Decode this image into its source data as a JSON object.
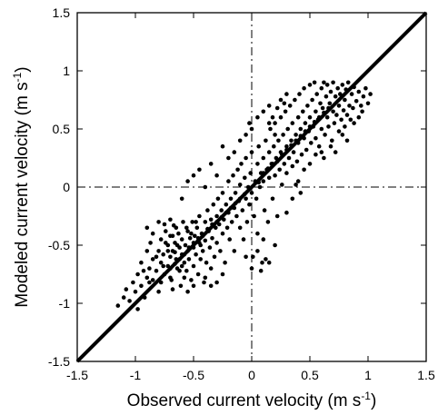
{
  "chart_data": {
    "type": "scatter",
    "title": "",
    "xlabel": "Observed current velocity (m s",
    "xlabel_sup": "-1",
    "xlabel_close": ")",
    "ylabel": "Modeled current velocity (m s",
    "ylabel_sup": "-1",
    "ylabel_close": ")",
    "xlim": [
      -1.5,
      1.5
    ],
    "ylim": [
      -1.5,
      1.5
    ],
    "xticks": [
      -1.5,
      -1,
      -0.5,
      0,
      0.5,
      1,
      1.5
    ],
    "yticks": [
      -1.5,
      -1,
      -0.5,
      0,
      0.5,
      1,
      1.5
    ],
    "xtick_labels": [
      "-1.5",
      "-1",
      "-0.5",
      "0",
      "0.5",
      "1",
      "1.5"
    ],
    "ytick_labels": [
      "-1.5",
      "-1",
      "-0.5",
      "0",
      "0.5",
      "1",
      "1.5"
    ],
    "grid": false,
    "reference_lines": [
      {
        "kind": "one-to-one",
        "style": "solid-thick",
        "from": [
          -1.5,
          -1.5
        ],
        "to": [
          1.5,
          1.5
        ]
      },
      {
        "kind": "vertical",
        "style": "dash-dot",
        "x": 0
      },
      {
        "kind": "horizontal",
        "style": "dash-dot",
        "y": 0
      }
    ],
    "marker_color": "#000000",
    "points": [
      [
        -1.15,
        -1.02
      ],
      [
        -1.1,
        -0.95
      ],
      [
        -1.05,
        -0.98
      ],
      [
        -1.0,
        -0.9
      ],
      [
        -0.98,
        -1.05
      ],
      [
        -1.08,
        -0.88
      ],
      [
        -0.95,
        -0.85
      ],
      [
        -0.92,
        -0.95
      ],
      [
        -0.9,
        -0.78
      ],
      [
        -0.88,
        -0.7
      ],
      [
        -0.85,
        -0.62
      ],
      [
        -0.85,
        -0.8
      ],
      [
        -0.82,
        -0.72
      ],
      [
        -0.8,
        -0.55
      ],
      [
        -0.8,
        -0.9
      ],
      [
        -0.78,
        -0.65
      ],
      [
        -0.78,
        -0.45
      ],
      [
        -0.76,
        -0.58
      ],
      [
        -0.75,
        -0.75
      ],
      [
        -0.74,
        -0.38
      ],
      [
        -0.72,
        -0.5
      ],
      [
        -0.72,
        -0.68
      ],
      [
        -0.7,
        -0.6
      ],
      [
        -0.7,
        -0.42
      ],
      [
        -0.69,
        -0.8
      ],
      [
        -0.68,
        -0.55
      ],
      [
        -0.67,
        -0.33
      ],
      [
        -0.66,
        -0.48
      ],
      [
        -0.65,
        -0.62
      ],
      [
        -0.64,
        -0.7
      ],
      [
        -0.63,
        -0.4
      ],
      [
        -0.62,
        -0.52
      ],
      [
        -0.61,
        -0.85
      ],
      [
        -0.6,
        -0.58
      ],
      [
        -0.6,
        -0.45
      ],
      [
        -0.59,
        -0.3
      ],
      [
        -0.58,
        -0.65
      ],
      [
        -0.57,
        -0.5
      ],
      [
        -0.56,
        -0.72
      ],
      [
        -0.55,
        -0.38
      ],
      [
        -0.55,
        -0.55
      ],
      [
        -0.54,
        -0.62
      ],
      [
        -0.53,
        -0.44
      ],
      [
        -0.52,
        -0.8
      ],
      [
        -0.51,
        -0.3
      ],
      [
        -0.5,
        -0.52
      ],
      [
        -0.5,
        -0.68
      ],
      [
        -0.49,
        -0.42
      ],
      [
        -0.48,
        -0.58
      ],
      [
        -0.47,
        -0.35
      ],
      [
        -0.46,
        -0.75
      ],
      [
        -0.45,
        -0.48
      ],
      [
        -0.45,
        -0.25
      ],
      [
        -0.44,
        -0.62
      ],
      [
        -0.43,
        -0.4
      ],
      [
        -0.42,
        -0.55
      ],
      [
        -0.41,
        -0.82
      ],
      [
        -0.4,
        -0.3
      ],
      [
        -0.4,
        -0.46
      ],
      [
        -0.39,
        -0.65
      ],
      [
        -0.38,
        -0.2
      ],
      [
        -0.37,
        -0.38
      ],
      [
        -0.36,
        -0.52
      ],
      [
        -0.35,
        -0.7
      ],
      [
        -0.35,
        -0.28
      ],
      [
        -0.34,
        -0.44
      ],
      [
        -0.33,
        -0.15
      ],
      [
        -0.32,
        -0.6
      ],
      [
        -0.31,
        -0.35
      ],
      [
        -0.3,
        -0.25
      ],
      [
        -0.3,
        -0.48
      ],
      [
        -0.29,
        -0.1
      ],
      [
        -0.28,
        -0.32
      ],
      [
        -0.27,
        -0.55
      ],
      [
        -0.26,
        -0.2
      ],
      [
        -0.25,
        -0.4
      ],
      [
        -0.25,
        -0.05
      ],
      [
        -0.24,
        -0.28
      ],
      [
        -0.23,
        -0.65
      ],
      [
        -0.22,
        -0.15
      ],
      [
        -0.21,
        -0.35
      ],
      [
        -0.2,
        -0.22
      ],
      [
        -0.2,
        0.05
      ],
      [
        -0.19,
        -0.45
      ],
      [
        -0.18,
        -0.1
      ],
      [
        -0.17,
        -0.3
      ],
      [
        -0.16,
        0.1
      ],
      [
        -0.15,
        -0.18
      ],
      [
        -0.15,
        -0.55
      ],
      [
        -0.14,
        -0.05
      ],
      [
        -0.13,
        -0.25
      ],
      [
        -0.12,
        0.15
      ],
      [
        -0.11,
        -0.12
      ],
      [
        -0.1,
        -0.35
      ],
      [
        -0.1,
        0.02
      ],
      [
        -0.09,
        0.2
      ],
      [
        -0.08,
        -0.2
      ],
      [
        -0.07,
        -0.45
      ],
      [
        -0.06,
        0.08
      ],
      [
        -0.05,
        -0.1
      ],
      [
        -0.05,
        0.25
      ],
      [
        -0.04,
        -0.3
      ],
      [
        -0.03,
        0.0
      ],
      [
        -0.02,
        -0.15
      ],
      [
        -0.01,
        0.12
      ],
      [
        0.0,
        -0.05
      ],
      [
        0.0,
        0.3
      ],
      [
        0.01,
        -0.6
      ],
      [
        0.02,
        -0.25
      ],
      [
        0.03,
        0.05
      ],
      [
        0.04,
        -0.1
      ],
      [
        0.05,
        0.2
      ],
      [
        0.05,
        -0.4
      ],
      [
        0.06,
        0.35
      ],
      [
        0.07,
        0.0
      ],
      [
        0.08,
        0.12
      ],
      [
        0.09,
        -0.65
      ],
      [
        0.1,
        0.25
      ],
      [
        0.1,
        0.05
      ],
      [
        0.11,
        -0.2
      ],
      [
        0.12,
        0.4
      ],
      [
        0.13,
        0.15
      ],
      [
        0.14,
        -0.3
      ],
      [
        0.15,
        0.3
      ],
      [
        0.15,
        0.08
      ],
      [
        0.16,
        0.5
      ],
      [
        0.17,
        0.2
      ],
      [
        0.18,
        -0.1
      ],
      [
        0.19,
        0.35
      ],
      [
        0.2,
        0.1
      ],
      [
        0.2,
        0.55
      ],
      [
        0.21,
        0.25
      ],
      [
        0.22,
        -0.25
      ],
      [
        0.23,
        0.4
      ],
      [
        0.24,
        0.15
      ],
      [
        0.25,
        0.6
      ],
      [
        0.25,
        0.3
      ],
      [
        0.26,
        0.02
      ],
      [
        0.27,
        0.45
      ],
      [
        0.28,
        0.2
      ],
      [
        0.29,
        0.65
      ],
      [
        0.3,
        0.35
      ],
      [
        0.3,
        0.12
      ],
      [
        0.31,
        0.5
      ],
      [
        0.32,
        0.25
      ],
      [
        0.33,
        0.7
      ],
      [
        0.34,
        0.4
      ],
      [
        0.35,
        0.18
      ],
      [
        0.35,
        0.55
      ],
      [
        0.36,
        0.3
      ],
      [
        0.37,
        0.75
      ],
      [
        0.38,
        0.45
      ],
      [
        0.39,
        0.22
      ],
      [
        0.4,
        0.6
      ],
      [
        0.4,
        0.38
      ],
      [
        0.41,
        0.8
      ],
      [
        0.42,
        0.5
      ],
      [
        0.43,
        0.28
      ],
      [
        0.44,
        0.65
      ],
      [
        0.45,
        0.42
      ],
      [
        0.45,
        0.85
      ],
      [
        0.46,
        0.55
      ],
      [
        0.47,
        0.32
      ],
      [
        0.48,
        0.7
      ],
      [
        0.49,
        0.48
      ],
      [
        0.5,
        0.88
      ],
      [
        0.5,
        0.6
      ],
      [
        0.51,
        0.38
      ],
      [
        0.52,
        0.75
      ],
      [
        0.53,
        0.52
      ],
      [
        0.54,
        0.9
      ],
      [
        0.55,
        0.65
      ],
      [
        0.55,
        0.42
      ],
      [
        0.56,
        0.8
      ],
      [
        0.57,
        0.58
      ],
      [
        0.58,
        0.35
      ],
      [
        0.59,
        0.72
      ],
      [
        0.6,
        0.85
      ],
      [
        0.6,
        0.5
      ],
      [
        0.61,
        0.68
      ],
      [
        0.62,
        0.9
      ],
      [
        0.63,
        0.45
      ],
      [
        0.64,
        0.78
      ],
      [
        0.65,
        0.6
      ],
      [
        0.65,
        0.88
      ],
      [
        0.66,
        0.52
      ],
      [
        0.67,
        0.72
      ],
      [
        0.68,
        0.82
      ],
      [
        0.69,
        0.4
      ],
      [
        0.7,
        0.65
      ],
      [
        0.7,
        0.9
      ],
      [
        0.71,
        0.55
      ],
      [
        0.72,
        0.78
      ],
      [
        0.73,
        0.62
      ],
      [
        0.74,
        0.85
      ],
      [
        0.75,
        0.48
      ],
      [
        0.75,
        0.7
      ],
      [
        0.76,
        0.8
      ],
      [
        0.77,
        0.58
      ],
      [
        0.78,
        0.88
      ],
      [
        0.79,
        0.66
      ],
      [
        0.8,
        0.75
      ],
      [
        0.8,
        0.52
      ],
      [
        0.81,
        0.84
      ],
      [
        0.82,
        0.62
      ],
      [
        0.83,
        0.9
      ],
      [
        0.84,
        0.7
      ],
      [
        0.85,
        0.58
      ],
      [
        0.86,
        0.8
      ],
      [
        0.87,
        0.68
      ],
      [
        0.88,
        0.86
      ],
      [
        0.9,
        0.74
      ],
      [
        0.92,
        0.82
      ],
      [
        0.94,
        0.7
      ],
      [
        0.96,
        0.78
      ],
      [
        0.98,
        0.85
      ],
      [
        1.0,
        0.72
      ],
      [
        1.02,
        0.8
      ],
      [
        -0.9,
        -0.35
      ],
      [
        -0.85,
        -0.4
      ],
      [
        -0.8,
        -0.3
      ],
      [
        -0.75,
        -0.32
      ],
      [
        -0.7,
        -0.28
      ],
      [
        -0.65,
        -0.35
      ],
      [
        -0.95,
        -0.65
      ],
      [
        -0.98,
        -0.75
      ],
      [
        -1.02,
        -0.82
      ],
      [
        -0.9,
        -0.55
      ],
      [
        -0.87,
        -0.48
      ],
      [
        -0.3,
        -0.82
      ],
      [
        -0.25,
        -0.75
      ],
      [
        -0.35,
        -0.85
      ],
      [
        -0.4,
        -0.78
      ],
      [
        -0.5,
        -0.85
      ],
      [
        -0.55,
        -0.9
      ],
      [
        -0.62,
        -0.72
      ],
      [
        -0.68,
        -0.88
      ],
      [
        -0.58,
        -0.78
      ],
      [
        0.05,
        -0.55
      ],
      [
        0.1,
        -0.45
      ],
      [
        0.12,
        -0.62
      ],
      [
        0.08,
        -0.72
      ],
      [
        0.15,
        -0.65
      ],
      [
        0.0,
        -0.7
      ],
      [
        -0.05,
        -0.6
      ],
      [
        0.2,
        -0.5
      ],
      [
        0.3,
        -0.22
      ],
      [
        0.35,
        -0.1
      ],
      [
        0.4,
        0.05
      ],
      [
        0.45,
        0.15
      ],
      [
        0.5,
        0.2
      ],
      [
        0.55,
        0.28
      ],
      [
        0.6,
        0.3
      ],
      [
        0.38,
        0.02
      ],
      [
        0.42,
        -0.05
      ],
      [
        -0.55,
        0.05
      ],
      [
        -0.5,
        0.1
      ],
      [
        -0.45,
        0.15
      ],
      [
        -0.6,
        -0.1
      ],
      [
        -0.4,
        0.0
      ],
      [
        -0.35,
        0.2
      ],
      [
        -0.3,
        0.1
      ],
      [
        -0.2,
        0.25
      ],
      [
        -0.15,
        0.3
      ],
      [
        -0.25,
        0.35
      ],
      [
        -0.1,
        0.4
      ],
      [
        -0.05,
        0.45
      ],
      [
        0.0,
        0.5
      ],
      [
        -0.02,
        0.55
      ],
      [
        0.05,
        0.6
      ],
      [
        0.1,
        0.65
      ],
      [
        0.15,
        0.7
      ],
      [
        0.18,
        0.6
      ],
      [
        0.22,
        0.68
      ],
      [
        0.25,
        0.75
      ],
      [
        0.3,
        0.8
      ],
      [
        0.28,
        0.72
      ],
      [
        0.2,
        0.45
      ],
      [
        0.15,
        0.55
      ],
      [
        0.62,
        0.25
      ],
      [
        0.68,
        0.35
      ],
      [
        0.72,
        0.3
      ],
      [
        0.78,
        0.45
      ],
      [
        0.82,
        0.4
      ],
      [
        0.88,
        0.55
      ],
      [
        0.92,
        0.6
      ],
      [
        0.95,
        0.65
      ],
      [
        -0.7,
        -0.7
      ],
      [
        -0.66,
        -0.66
      ],
      [
        -0.62,
        -0.62
      ],
      [
        -0.58,
        -0.58
      ],
      [
        -0.54,
        -0.52
      ],
      [
        -0.5,
        -0.48
      ],
      [
        -0.46,
        -0.44
      ],
      [
        -0.42,
        -0.42
      ],
      [
        -0.38,
        -0.36
      ],
      [
        -0.34,
        -0.32
      ],
      [
        -0.3,
        -0.3
      ],
      [
        -0.26,
        -0.26
      ],
      [
        -0.22,
        -0.22
      ],
      [
        -0.18,
        -0.18
      ],
      [
        -0.14,
        -0.14
      ],
      [
        -0.1,
        -0.1
      ],
      [
        -0.06,
        -0.06
      ],
      [
        0.06,
        0.04
      ],
      [
        0.1,
        0.12
      ],
      [
        0.14,
        0.16
      ],
      [
        0.18,
        0.2
      ],
      [
        0.22,
        0.22
      ],
      [
        0.26,
        0.28
      ],
      [
        0.3,
        0.32
      ],
      [
        0.34,
        0.36
      ],
      [
        0.38,
        0.4
      ],
      [
        0.42,
        0.44
      ],
      [
        0.46,
        0.48
      ],
      [
        0.5,
        0.52
      ],
      [
        0.54,
        0.56
      ],
      [
        0.58,
        0.6
      ],
      [
        0.62,
        0.64
      ],
      [
        0.66,
        0.68
      ],
      [
        -0.72,
        -0.55
      ],
      [
        -0.76,
        -0.68
      ],
      [
        -0.82,
        -0.6
      ],
      [
        -0.88,
        -0.82
      ],
      [
        -0.93,
        -0.72
      ],
      [
        -0.78,
        -0.82
      ],
      [
        -0.64,
        -0.5
      ],
      [
        -0.68,
        -0.42
      ],
      [
        -0.56,
        -0.35
      ],
      [
        -0.48,
        -0.3
      ],
      [
        -0.52,
        -0.4
      ],
      [
        -0.44,
        -0.5
      ],
      [
        -0.6,
        -0.68
      ],
      [
        -0.74,
        -0.48
      ],
      [
        -0.66,
        -0.56
      ],
      [
        -0.7,
        -0.78
      ]
    ]
  }
}
